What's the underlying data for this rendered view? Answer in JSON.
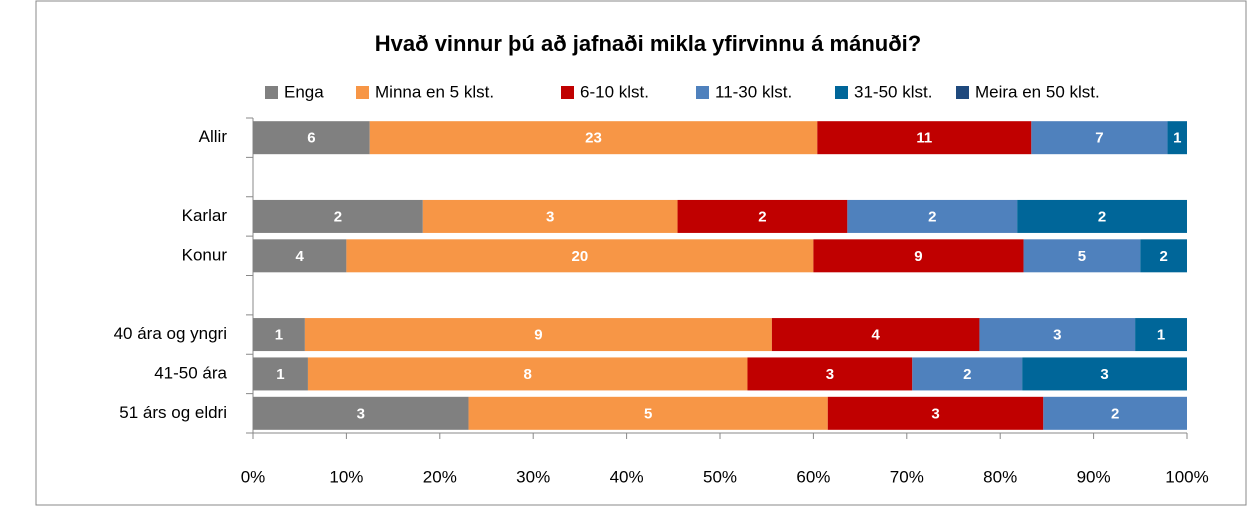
{
  "chart_data": {
    "type": "bar",
    "orientation": "horizontal",
    "stacking": "percent",
    "title": "Hvað vinnur þú að jafnaði mikla yfirvinnu á mánuði?",
    "categories": [
      "Allir",
      null,
      "Karlar",
      "Konur",
      null,
      "40 ára og yngri",
      "41-50 ára",
      "51 árs og eldri"
    ],
    "series": [
      {
        "name": "Enga",
        "color": "#808080",
        "values": [
          6,
          null,
          2,
          4,
          null,
          1,
          1,
          3
        ]
      },
      {
        "name": "Minna en 5 klst.",
        "color": "#f79646",
        "values": [
          23,
          null,
          3,
          20,
          null,
          9,
          8,
          5
        ]
      },
      {
        "name": "6-10 klst.",
        "color": "#c00000",
        "values": [
          11,
          null,
          2,
          9,
          null,
          4,
          3,
          3
        ]
      },
      {
        "name": "11-30 klst.",
        "color": "#4f81bd",
        "values": [
          7,
          null,
          2,
          5,
          null,
          3,
          2,
          2
        ]
      },
      {
        "name": "31-50 klst.",
        "color": "#006699",
        "values": [
          1,
          null,
          2,
          2,
          null,
          1,
          3,
          null
        ]
      },
      {
        "name": "Meira en 50 klst.",
        "color": "#1f497d",
        "values": [
          null,
          null,
          null,
          null,
          null,
          null,
          null,
          null
        ]
      }
    ],
    "xlim": [
      0,
      100
    ],
    "xticks": [
      {
        "value": 0,
        "label": "0%"
      },
      {
        "value": 10,
        "label": "10%"
      },
      {
        "value": 20,
        "label": "20%"
      },
      {
        "value": 30,
        "label": "30%"
      },
      {
        "value": 40,
        "label": "40%"
      },
      {
        "value": 50,
        "label": "50%"
      },
      {
        "value": 60,
        "label": "60%"
      },
      {
        "value": 70,
        "label": "70%"
      },
      {
        "value": 80,
        "label": "80%"
      },
      {
        "value": 90,
        "label": "90%"
      },
      {
        "value": 100,
        "label": "100%"
      }
    ],
    "legend": "top",
    "grid": false
  }
}
